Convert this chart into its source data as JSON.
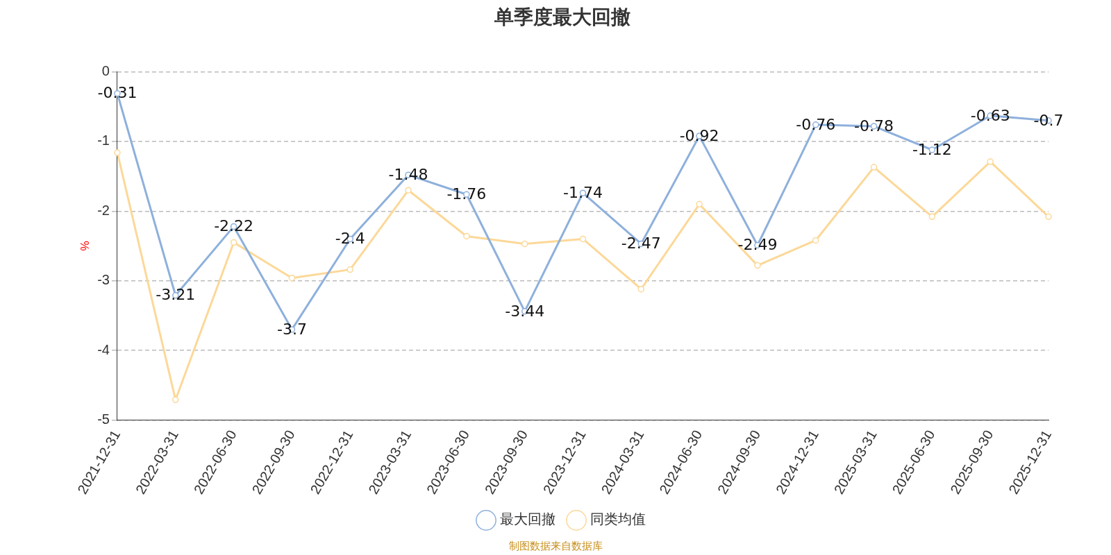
{
  "chart_data": {
    "type": "line",
    "title": "单季度最大回撤",
    "ylabel": "%",
    "categories": [
      "2021-12-31",
      "2022-03-31",
      "2022-06-30",
      "2022-09-30",
      "2022-12-31",
      "2023-03-31",
      "2023-06-30",
      "2023-09-30",
      "2023-12-31",
      "2024-03-31",
      "2024-06-30",
      "2024-09-30",
      "2024-12-31",
      "2025-03-31",
      "2025-06-30",
      "2025-09-30",
      "2025-12-31"
    ],
    "series": [
      {
        "name": "最大回撤",
        "color": "#8eb0dc",
        "values": [
          -0.31,
          -3.21,
          -2.22,
          -3.7,
          -2.4,
          -1.48,
          -1.76,
          -3.44,
          -1.74,
          -2.47,
          -0.92,
          -2.49,
          -0.76,
          -0.78,
          -1.12,
          -0.63,
          -0.7
        ],
        "value_labels": [
          "-0.31",
          "-3.21",
          "-2.22",
          "-3.7",
          "-2.4",
          "-1.48",
          "-1.76",
          "-3.44",
          "-1.74",
          "-2.47",
          "-0.92",
          "-2.49",
          "-0.76",
          "-0.78",
          "-1.12",
          "-0.63",
          "-0.7"
        ]
      },
      {
        "name": "同类均值",
        "color": "#fcd898",
        "values": [
          -1.16,
          -4.71,
          -2.45,
          -2.96,
          -2.84,
          -1.7,
          -2.36,
          -2.47,
          -2.4,
          -3.12,
          -1.9,
          -2.78,
          -2.42,
          -1.37,
          -2.08,
          -1.29,
          -2.08
        ]
      }
    ],
    "ylim": [
      -5,
      0
    ],
    "yticks": [
      0,
      -1,
      -2,
      -3,
      -4,
      -5
    ],
    "grid": "y",
    "legend": "bottom",
    "marker": "circle",
    "line_style": "solid",
    "annotations": [
      "制图数据来自数据库"
    ]
  }
}
